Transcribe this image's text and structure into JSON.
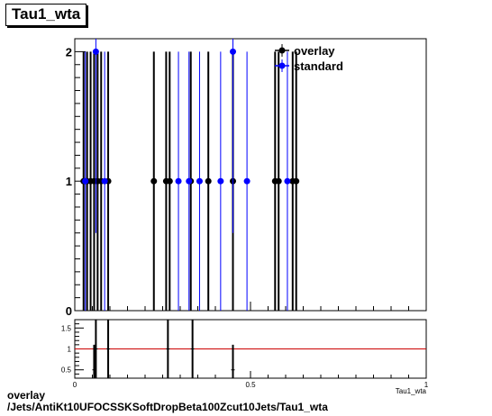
{
  "title": "Tau1_wta",
  "footer": {
    "line1": "overlay",
    "line2": "/Jets/AntiKt10UFOCSSKSoftDropBeta100Zcut10Jets/Tau1_wta"
  },
  "colors": {
    "overlay": "#000000",
    "standard": "#0000ff",
    "ratio_line": "#cc0000"
  },
  "chart_data": [
    {
      "type": "scatter",
      "title": "Tau1_wta",
      "xlabel": "Tau1_wta",
      "ylabel": "",
      "xlim": [
        0,
        1
      ],
      "ylim": [
        0,
        2.1
      ],
      "yticks": [
        "0",
        "1",
        "2"
      ],
      "legend": {
        "placement": "top-right",
        "entries": [
          "overlay",
          "standard"
        ]
      },
      "series": [
        {
          "name": "overlay",
          "x": [
            0.025,
            0.035,
            0.045,
            0.055,
            0.065,
            0.075,
            0.095,
            0.225,
            0.26,
            0.27,
            0.33,
            0.38,
            0.45,
            0.57,
            0.58,
            0.62,
            0.63
          ],
          "y": [
            1,
            1,
            1,
            1,
            1,
            1,
            1,
            1,
            1,
            1,
            1,
            1,
            1,
            1,
            1,
            1,
            1
          ]
        },
        {
          "name": "standard",
          "x": [
            0.03,
            0.06,
            0.085,
            0.295,
            0.325,
            0.355,
            0.415,
            0.45,
            0.49,
            0.605
          ],
          "y": [
            1,
            2,
            1,
            1,
            1,
            1,
            1,
            2,
            1,
            1
          ]
        }
      ]
    },
    {
      "type": "scatter",
      "title": "",
      "xlabel": "Tau1_wta",
      "xlim": [
        0,
        1
      ],
      "ylim": [
        0.3,
        1.7
      ],
      "xticks": [
        "0",
        "0.5",
        "1"
      ],
      "yticks": [
        "0.5",
        "1",
        "1.5"
      ],
      "reference_line": 1,
      "series": [
        {
          "name": "",
          "x": [
            0.06,
            0.095,
            0.265,
            0.335
          ],
          "y": [
            1,
            1,
            1,
            1
          ]
        },
        {
          "name": "",
          "x": [
            0.055,
            0.45
          ],
          "y": [
            0.5,
            0.5
          ]
        }
      ]
    }
  ]
}
